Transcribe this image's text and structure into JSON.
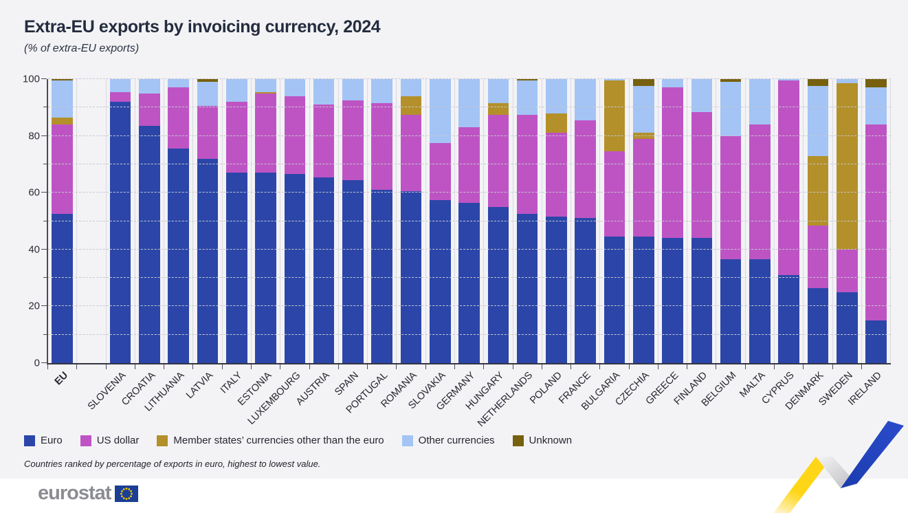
{
  "title": "Extra-EU exports by invoicing currency, 2024",
  "subtitle": "(% of extra-EU exports)",
  "footnote": "Countries ranked by percentage of exports in euro, highest to lowest value.",
  "logo_text": "eurostat",
  "colors": {
    "background": "#f3f3f6",
    "euro": "#2B46A8",
    "usd": "#BE54C4",
    "member": "#B3902A",
    "other": "#A3C4F4",
    "unknown": "#77610E"
  },
  "chart_data": {
    "type": "bar",
    "stacked": true,
    "title": "Extra-EU exports by invoicing currency, 2024",
    "ylabel": "% of extra-EU exports",
    "ylim": [
      0,
      100
    ],
    "yticks": [
      0,
      20,
      40,
      60,
      80,
      100
    ],
    "grid": "dashed horizontal every 10, vertical category separators",
    "legend_position": "bottom-left",
    "categories": [
      "EU",
      "SLOVENIA",
      "CROATIA",
      "LITHUANIA",
      "LATVIA",
      "ITALY",
      "ESTONIA",
      "LUXEMBOURG",
      "AUSTRIA",
      "SPAIN",
      "PORTUGAL",
      "ROMANIA",
      "SLOVAKIA",
      "GERMANY",
      "HUNGARY",
      "NETHERLANDS",
      "POLAND",
      "FRANCE",
      "BULGARIA",
      "CZECHIA",
      "GREECE",
      "FINLAND",
      "BELGIUM",
      "MALTA",
      "CYPRUS",
      "DENMARK",
      "SWEDEN",
      "IRELAND"
    ],
    "gap_after_first_category": true,
    "series": [
      {
        "key": "euro",
        "name": "Euro",
        "color": "#2B46A8",
        "values": [
          52.5,
          92,
          83.5,
          75.5,
          72,
          67,
          67,
          66.5,
          65.5,
          64.5,
          61,
          60.5,
          57.5,
          56.5,
          55,
          52.5,
          51.5,
          51,
          44.5,
          44.5,
          44,
          44,
          36.5,
          36.5,
          31,
          26.5,
          25,
          15
        ]
      },
      {
        "key": "usd",
        "name": "US dollar",
        "color": "#BE54C4",
        "values": [
          31.5,
          3.5,
          11.5,
          21.5,
          18.5,
          25,
          28,
          27.5,
          25.5,
          28,
          30.5,
          27,
          20,
          26.5,
          32.5,
          35,
          29.5,
          34.5,
          30,
          34.5,
          53,
          44.5,
          43.5,
          47.5,
          68.5,
          22,
          15,
          69
        ]
      },
      {
        "key": "member",
        "name": "Member states’ currencies other than the euro",
        "color": "#B3902A",
        "values": [
          2.5,
          0,
          0,
          0,
          0,
          0,
          0.5,
          0,
          0,
          0,
          0,
          6.5,
          0,
          0,
          4,
          0,
          7,
          0,
          25,
          2,
          0,
          0,
          0,
          0,
          0,
          24.5,
          58.5,
          0
        ]
      },
      {
        "key": "other",
        "name": "Other currencies",
        "color": "#A3C4F4",
        "values": [
          13,
          4.5,
          5,
          3,
          8.5,
          8,
          4.5,
          6,
          9,
          7.5,
          8.5,
          6,
          22.5,
          17,
          8.5,
          12,
          12,
          14.5,
          0.5,
          16.5,
          3,
          11.5,
          19,
          16,
          0.5,
          24.5,
          1.5,
          13
        ]
      },
      {
        "key": "unknown",
        "name": "Unknown",
        "color": "#77610E",
        "values": [
          0.5,
          0,
          0,
          0,
          1,
          0,
          0,
          0,
          0,
          0,
          0,
          0,
          0,
          0,
          0,
          0.5,
          0,
          0,
          0,
          2.5,
          0,
          0,
          1,
          0,
          0,
          2.5,
          0,
          3
        ]
      }
    ]
  }
}
